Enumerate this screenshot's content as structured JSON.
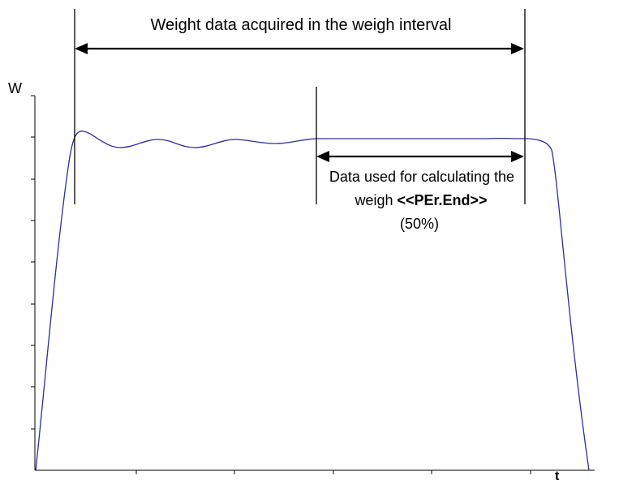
{
  "labels": {
    "top_interval": "Weight data acquired in the weigh interval",
    "y_axis": "W",
    "x_axis": "t",
    "calc_line1": "Data used for calculating the",
    "calc_line2_prefix": "weigh ",
    "calc_line2_bold": "<<PEr.End>>",
    "calc_line3": "(50%)"
  },
  "colors": {
    "curve": "#2b2e9c",
    "lines": "#000000"
  }
}
